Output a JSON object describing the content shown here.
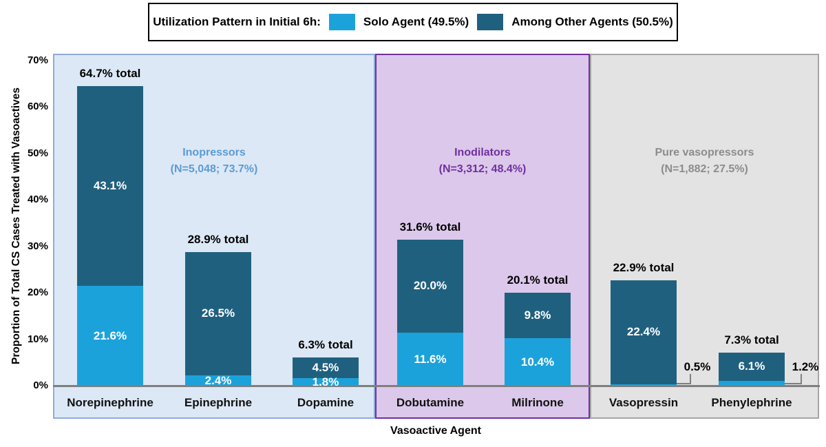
{
  "legend": {
    "title": "Utilization Pattern in Initial 6h:",
    "items": [
      {
        "name": "solo-agent",
        "label": "Solo Agent (49.5%)",
        "color": "#1CA2DB"
      },
      {
        "name": "among-other-agents",
        "label": "Among Other Agents (50.5%)",
        "color": "#20607F"
      }
    ]
  },
  "axes": {
    "ylabel": "Proportion of Total CS Cases Treated with Vasoactives",
    "xlabel": "Vasoactive Agent",
    "yticks": [
      "0%",
      "10%",
      "20%",
      "30%",
      "40%",
      "50%",
      "60%",
      "70%"
    ],
    "ytick_values": [
      0,
      10,
      20,
      30,
      40,
      50,
      60,
      70
    ]
  },
  "chart_data": {
    "type": "bar",
    "stacked": true,
    "title": "Utilization Pattern in Initial 6h:",
    "xlabel": "Vasoactive Agent",
    "ylabel": "Proportion of Total CS Cases Treated with Vasoactives",
    "ylim": [
      0,
      70
    ],
    "legend_position": "top",
    "grid": false,
    "series": [
      {
        "name": "Solo Agent (49.5%)",
        "color": "#1CA2DB"
      },
      {
        "name": "Among Other Agents (50.5%)",
        "color": "#20607F"
      }
    ],
    "groups": [
      {
        "name": "Inopressors",
        "n_label": "(N=5,048; 73.7%)",
        "text_color": "#5B9BD5",
        "bg_color": "#DCE8F5",
        "border_color": "#8FAADC",
        "bars": [
          {
            "category": "Norepinephrine",
            "solo": 21.6,
            "among": 43.1,
            "total": 64.7,
            "solo_label": "21.6%",
            "among_label": "43.1%",
            "total_label": "64.7% total",
            "solo_callout": false
          },
          {
            "category": "Epinephrine",
            "solo": 2.4,
            "among": 26.5,
            "total": 28.9,
            "solo_label": "2.4%",
            "among_label": "26.5%",
            "total_label": "28.9% total",
            "solo_callout": false
          },
          {
            "category": "Dopamine",
            "solo": 1.8,
            "among": 4.5,
            "total": 6.3,
            "solo_label": "1.8%",
            "among_label": "4.5%",
            "total_label": "6.3% total",
            "solo_callout": false
          }
        ]
      },
      {
        "name": "Inodilators",
        "n_label": "(N=3,312; 48.4%)",
        "text_color": "#7030A0",
        "bg_color": "#DCC8EA",
        "border_color": "#7030A0",
        "bars": [
          {
            "category": "Dobutamine",
            "solo": 11.6,
            "among": 20.0,
            "total": 31.6,
            "solo_label": "11.6%",
            "among_label": "20.0%",
            "total_label": "31.6% total",
            "solo_callout": false
          },
          {
            "category": "Milrinone",
            "solo": 10.4,
            "among": 9.8,
            "total": 20.1,
            "solo_label": "10.4%",
            "among_label": "9.8%",
            "total_label": "20.1% total",
            "solo_callout": false
          }
        ]
      },
      {
        "name": "Pure vasopressors",
        "n_label": "(N=1,882; 27.5%)",
        "text_color": "#8C8C8C",
        "bg_color": "#E3E3E3",
        "border_color": "#A6A6A6",
        "bars": [
          {
            "category": "Vasopressin",
            "solo": 0.5,
            "among": 22.4,
            "total": 22.9,
            "solo_label": "0.5%",
            "among_label": "22.4%",
            "total_label": "22.9% total",
            "solo_callout": true
          },
          {
            "category": "Phenylephrine",
            "solo": 1.2,
            "among": 6.1,
            "total": 7.3,
            "solo_label": "1.2%",
            "among_label": "6.1%",
            "total_label": "7.3% total",
            "solo_callout": true
          }
        ]
      }
    ]
  }
}
